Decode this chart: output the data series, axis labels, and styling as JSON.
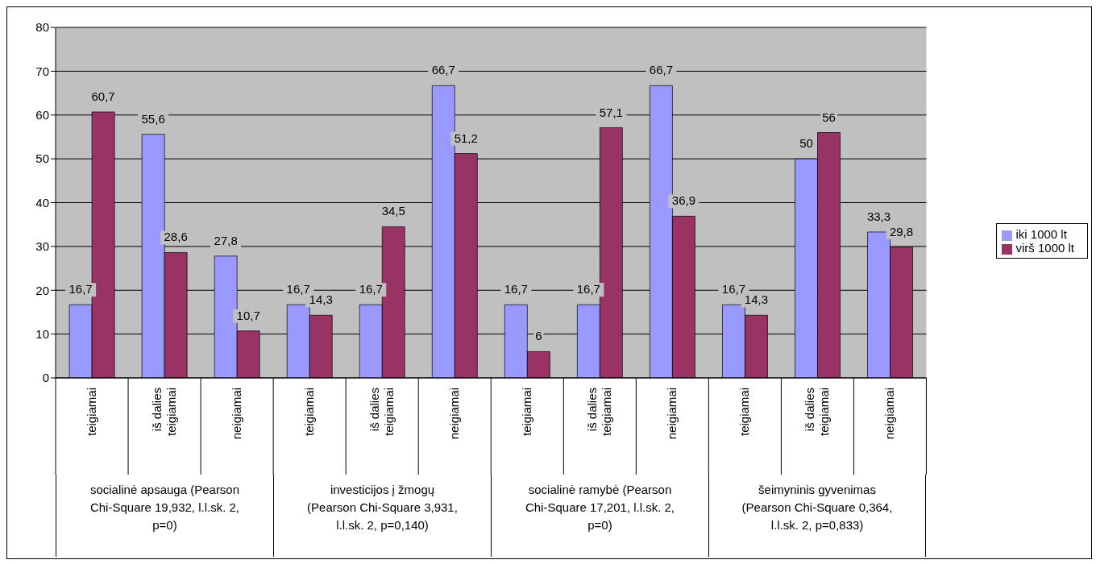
{
  "chart_data": {
    "type": "bar",
    "categories": [
      "teigiamai",
      "iš dalies teigiamai",
      "neigiamai",
      "teigiamai",
      "iš dalies teigiamai",
      "neigiamai",
      "teigiamai",
      "iš dalies teigiamai",
      "neigiamai",
      "teigiamai",
      "iš dalies teigiamai",
      "neigiamai"
    ],
    "series": [
      {
        "name": "iki 1000 lt",
        "color": "#9999ff",
        "values": [
          16.7,
          55.6,
          27.8,
          16.7,
          16.7,
          66.7,
          16.7,
          16.7,
          66.7,
          16.7,
          50,
          33.3
        ],
        "value_labels": [
          "16,7",
          "55,6",
          "27,8",
          "16,7",
          "16,7",
          "66,7",
          "16,7",
          "16,7",
          "66,7",
          "16,7",
          "50",
          "33,3"
        ]
      },
      {
        "name": "virš 1000 lt",
        "color": "#993366",
        "values": [
          60.7,
          28.6,
          10.7,
          14.3,
          34.5,
          51.2,
          6,
          57.1,
          36.9,
          14.3,
          56,
          29.8
        ],
        "value_labels": [
          "60,7",
          "28,6",
          "10,7",
          "14,3",
          "34,5",
          "51,2",
          "6",
          "57,1",
          "36,9",
          "14,3",
          "56",
          "29,8"
        ]
      }
    ],
    "ylim": [
      0,
      80
    ],
    "yticks": [
      0,
      10,
      20,
      30,
      40,
      50,
      60,
      70,
      80
    ],
    "grid": "y",
    "legend": "right",
    "annotations": [
      "socialinė apsauga (Pearson Chi-Square 19,932, l.l.sk. 2, p=0)",
      "investicijos į žmogų (Pearson Chi-Square 3,931, l.l.sk. 2, p=0,140)",
      "socialinė ramybė (Pearson Chi-Square 17,201, l.l.sk. 2, p=0)",
      "šeimyninis gyvenimas (Pearson Chi-Square 0,364, l.l.sk. 2, p=0,833)"
    ]
  }
}
